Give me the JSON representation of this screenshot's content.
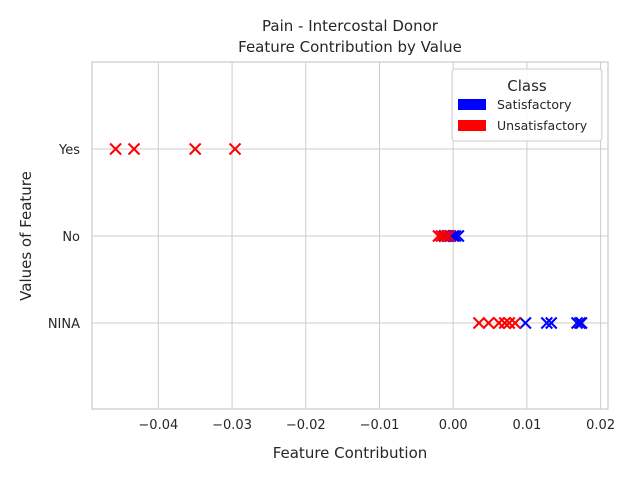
{
  "chart_data": {
    "type": "scatter",
    "title": "Pain - Intercostal Donor",
    "subtitle": "Feature Contribution by Value",
    "xlabel": "Feature Contribution",
    "ylabel": "Values of Feature",
    "xlim": [
      -0.049,
      0.021
    ],
    "x_ticks": [
      "−0.04",
      "−0.03",
      "−0.02",
      "−0.01",
      "0.00",
      "0.01",
      "0.02"
    ],
    "x_tick_values": [
      -0.04,
      -0.03,
      -0.02,
      -0.01,
      0.0,
      0.01,
      0.02
    ],
    "categories": [
      "Yes",
      "No",
      "NINA"
    ],
    "grid": true,
    "marker": "x",
    "legend": {
      "title": "Class",
      "position": "top-right",
      "entries": [
        {
          "label": "Satisfactory",
          "color": "#0000ff"
        },
        {
          "label": "Unsatisfactory",
          "color": "#ff0000"
        }
      ]
    },
    "series": [
      {
        "name": "Satisfactory",
        "color": "#0000ff",
        "points": [
          {
            "x": -0.0012,
            "y": "No"
          },
          {
            "x": -0.0008,
            "y": "No"
          },
          {
            "x": -0.0004,
            "y": "No"
          },
          {
            "x": 0.0,
            "y": "No"
          },
          {
            "x": 0.0003,
            "y": "No"
          },
          {
            "x": 0.0007,
            "y": "No"
          },
          {
            "x": 0.0098,
            "y": "NINA"
          },
          {
            "x": 0.0127,
            "y": "NINA"
          },
          {
            "x": 0.0133,
            "y": "NINA"
          },
          {
            "x": 0.0168,
            "y": "NINA"
          },
          {
            "x": 0.0172,
            "y": "NINA"
          },
          {
            "x": 0.0174,
            "y": "NINA"
          }
        ]
      },
      {
        "name": "Unsatisfactory",
        "color": "#ff0000",
        "points": [
          {
            "x": -0.0458,
            "y": "Yes"
          },
          {
            "x": -0.0433,
            "y": "Yes"
          },
          {
            "x": -0.035,
            "y": "Yes"
          },
          {
            "x": -0.0296,
            "y": "Yes"
          },
          {
            "x": -0.002,
            "y": "No"
          },
          {
            "x": -0.0016,
            "y": "No"
          },
          {
            "x": -0.0011,
            "y": "No"
          },
          {
            "x": -0.0006,
            "y": "No"
          },
          {
            "x": 0.0035,
            "y": "NINA"
          },
          {
            "x": 0.0048,
            "y": "NINA"
          },
          {
            "x": 0.0062,
            "y": "NINA"
          },
          {
            "x": 0.007,
            "y": "NINA"
          },
          {
            "x": 0.0076,
            "y": "NINA"
          },
          {
            "x": 0.0084,
            "y": "NINA"
          }
        ]
      }
    ]
  }
}
